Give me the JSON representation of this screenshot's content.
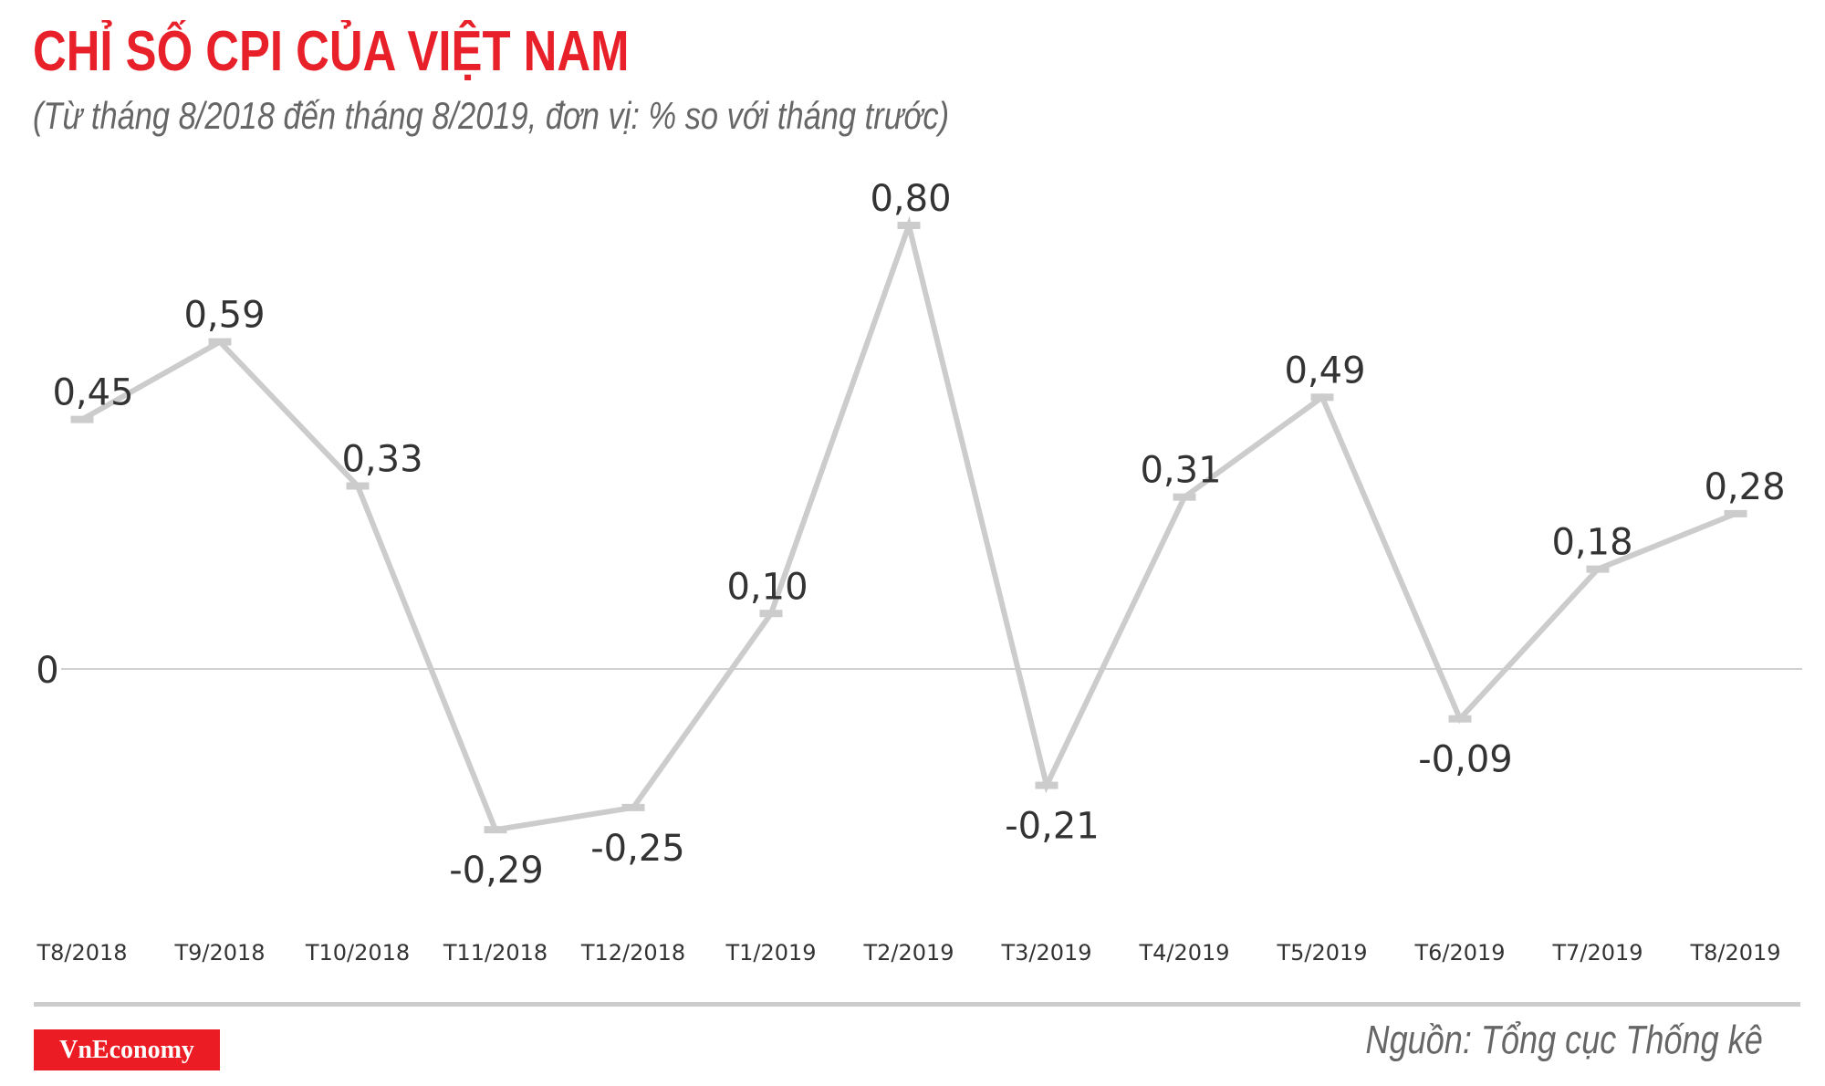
{
  "header": {
    "title": "CHỈ SỐ CPI CỦA VIỆT NAM",
    "subtitle": "(Từ tháng 8/2018 đến tháng 8/2019, đơn vị: % so với tháng trước)"
  },
  "footer": {
    "logo": "VnEconomy",
    "source": "Nguồn: Tổng cục Thống kê"
  },
  "colors": {
    "title": "#e8202a",
    "line": "#cccccc",
    "text": "#333333",
    "logo_bg": "#ec1c24"
  },
  "chart_data": {
    "type": "line",
    "title": "CHỈ SỐ CPI CỦA VIỆT NAM",
    "subtitle": "(Từ tháng 8/2018 đến tháng 8/2019, đơn vị: % so với tháng trước)",
    "xlabel": "",
    "ylabel": "% so với tháng trước",
    "categories": [
      "T8/2018",
      "T9/2018",
      "T10/2018",
      "T11/2018",
      "T12/2018",
      "T1/2019",
      "T2/2019",
      "T3/2019",
      "T4/2019",
      "T5/2019",
      "T6/2019",
      "T7/2019",
      "T8/2019"
    ],
    "values": [
      0.45,
      0.59,
      0.33,
      -0.29,
      -0.25,
      0.1,
      0.8,
      -0.21,
      0.31,
      0.49,
      -0.09,
      0.18,
      0.28
    ],
    "value_labels": [
      "0,45",
      "0,59",
      "0,33",
      "-0,29",
      "-0,25",
      "0,10",
      "0,80",
      "-0,21",
      "0,31",
      "0,49",
      "-0,09",
      "0,18",
      "0,28"
    ],
    "y_tick_labels": [
      "0"
    ],
    "grid": false,
    "legend": null,
    "baseline": 0
  }
}
